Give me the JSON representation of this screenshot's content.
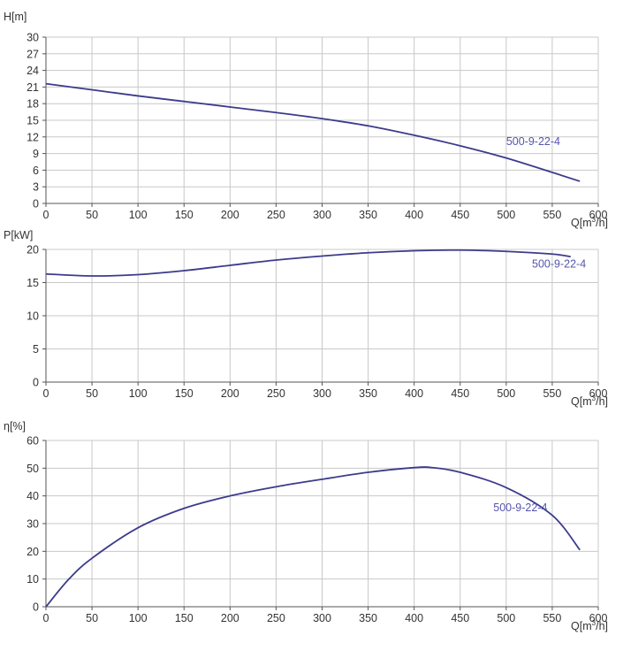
{
  "colors": {
    "curve": "#3b3b8c",
    "label": "#5555b0",
    "grid": "#c8c8c8",
    "axis": "#555555",
    "text": "#333333"
  },
  "chart_data": [
    {
      "type": "line",
      "title": "",
      "ylabel": "H[m]",
      "xlabel": {
        "main": "Q[m",
        "sup": "3",
        "tail": "/h]"
      },
      "xlim": [
        0,
        600
      ],
      "ylim": [
        0,
        30
      ],
      "xticks": [
        0,
        50,
        100,
        150,
        200,
        250,
        300,
        350,
        400,
        450,
        500,
        550,
        600
      ],
      "yticks": [
        0,
        3,
        6,
        9,
        12,
        15,
        18,
        21,
        24,
        27,
        30
      ],
      "grid": true,
      "series": [
        {
          "name": "500-9-22-4",
          "label_at": [
            500,
            10.5
          ],
          "x": [
            0,
            50,
            100,
            150,
            200,
            250,
            300,
            350,
            400,
            450,
            500,
            550,
            580
          ],
          "y": [
            21.6,
            20.5,
            19.4,
            18.4,
            17.4,
            16.4,
            15.3,
            14.0,
            12.3,
            10.4,
            8.2,
            5.6,
            4.0
          ]
        }
      ]
    },
    {
      "type": "line",
      "title": "",
      "ylabel": "P[kW]",
      "xlabel": {
        "main": "Q[m",
        "sup": "3",
        "tail": "/h]"
      },
      "xlim": [
        0,
        600
      ],
      "ylim": [
        0,
        20
      ],
      "xticks": [
        0,
        50,
        100,
        150,
        200,
        250,
        300,
        350,
        400,
        450,
        500,
        550,
        600
      ],
      "yticks": [
        0,
        5,
        10,
        15,
        20
      ],
      "grid": true,
      "series": [
        {
          "name": "500-9-22-4",
          "label_at": [
            528,
            17.3
          ],
          "x": [
            0,
            50,
            100,
            150,
            200,
            250,
            300,
            350,
            400,
            450,
            500,
            550,
            570
          ],
          "y": [
            16.3,
            16.0,
            16.2,
            16.8,
            17.6,
            18.4,
            19.0,
            19.5,
            19.8,
            19.9,
            19.7,
            19.3,
            18.9
          ]
        }
      ]
    },
    {
      "type": "line",
      "title": "",
      "ylabel": "η[%]",
      "xlabel": {
        "main": "Q[m",
        "sup": "3",
        "tail": "/h]"
      },
      "xlim": [
        0,
        600
      ],
      "ylim": [
        0,
        60
      ],
      "xticks": [
        0,
        50,
        100,
        150,
        200,
        250,
        300,
        350,
        400,
        450,
        500,
        550,
        600
      ],
      "yticks": [
        0,
        10,
        20,
        30,
        40,
        50,
        60
      ],
      "grid": true,
      "series": [
        {
          "name": "500-9-22-4",
          "label_at": [
            486,
            34.5
          ],
          "x": [
            0,
            25,
            50,
            100,
            150,
            200,
            250,
            300,
            350,
            400,
            420,
            450,
            500,
            550,
            580
          ],
          "y": [
            0,
            10,
            17.5,
            28.5,
            35.5,
            40,
            43.3,
            46,
            48.5,
            50.2,
            50.2,
            48.5,
            43,
            33,
            20.5
          ]
        }
      ]
    }
  ]
}
